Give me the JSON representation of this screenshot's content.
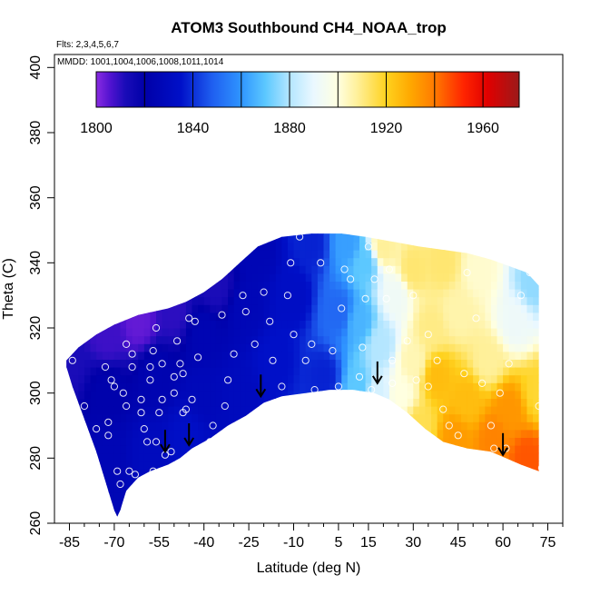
{
  "chart_data": {
    "type": "heatmap",
    "title": "ATOM3 Southbound CH4_NOAA_trop",
    "subtitle_flights": "Flts: 2,3,4,5,6,7",
    "subtitle_dates": "MMDD: 1001,1004,1006,1008,1011,1014",
    "xlabel": "Latitude (deg N)",
    "ylabel": "Theta (C)",
    "xlim": [
      -90,
      80
    ],
    "ylim": [
      260,
      404
    ],
    "x_ticks": [
      -85,
      -70,
      -55,
      -40,
      -25,
      -10,
      5,
      15,
      30,
      45,
      60,
      75
    ],
    "x_minor_ticks": [
      -80,
      -75,
      -65,
      -60,
      -50,
      -45,
      -35,
      -30,
      -20,
      -15,
      -5,
      0,
      10,
      20,
      25,
      35,
      40,
      50,
      55,
      65,
      70,
      80
    ],
    "y_ticks": [
      260,
      280,
      300,
      320,
      340,
      360,
      380,
      400
    ],
    "colorbar": {
      "min": 1800,
      "max": 1975,
      "tick_values": [
        1800,
        1840,
        1880,
        1920,
        1960
      ],
      "tick_labels": [
        "1800",
        "1840",
        "1880",
        "1920",
        "1960"
      ],
      "bin_edges": [
        1800,
        1820,
        1840,
        1860,
        1880,
        1900,
        1920,
        1940,
        1960,
        1975
      ],
      "stops": [
        {
          "value": 1800,
          "color": "#8a2be2"
        },
        {
          "value": 1806,
          "color": "#4f12cf"
        },
        {
          "value": 1812,
          "color": "#1a0cb8"
        },
        {
          "value": 1820,
          "color": "#0000a8"
        },
        {
          "value": 1835,
          "color": "#0010c8"
        },
        {
          "value": 1848,
          "color": "#1f5ff0"
        },
        {
          "value": 1860,
          "color": "#2f95ff"
        },
        {
          "value": 1870,
          "color": "#5cc8ff"
        },
        {
          "value": 1880,
          "color": "#b4e6ff"
        },
        {
          "value": 1890,
          "color": "#eaf8ff"
        },
        {
          "value": 1900,
          "color": "#ffffe0"
        },
        {
          "value": 1908,
          "color": "#fff09a"
        },
        {
          "value": 1920,
          "color": "#ffd21e"
        },
        {
          "value": 1930,
          "color": "#ffa800"
        },
        {
          "value": 1940,
          "color": "#ff7a00"
        },
        {
          "value": 1952,
          "color": "#ff2400"
        },
        {
          "value": 1962,
          "color": "#e00000"
        },
        {
          "value": 1975,
          "color": "#9b1a1a"
        }
      ]
    },
    "field_extent": {
      "top_boundary": [
        [
          -86,
          310
        ],
        [
          -82,
          314
        ],
        [
          -76,
          318
        ],
        [
          -70,
          321
        ],
        [
          -62,
          324
        ],
        [
          -52,
          326
        ],
        [
          -46,
          328
        ],
        [
          -40,
          331
        ],
        [
          -34,
          335
        ],
        [
          -28,
          340
        ],
        [
          -22,
          345
        ],
        [
          -14,
          348
        ],
        [
          -4,
          349
        ],
        [
          6,
          349
        ],
        [
          14,
          348
        ],
        [
          20,
          347
        ],
        [
          26,
          346
        ],
        [
          32,
          345
        ],
        [
          40,
          344
        ],
        [
          48,
          343
        ],
        [
          56,
          341
        ],
        [
          62,
          339
        ],
        [
          68,
          337
        ],
        [
          72,
          333
        ]
      ],
      "bottom_boundary": [
        [
          72,
          276
        ],
        [
          66,
          278
        ],
        [
          56,
          282
        ],
        [
          48,
          283
        ],
        [
          40,
          285
        ],
        [
          34,
          289
        ],
        [
          28,
          294
        ],
        [
          22,
          298
        ],
        [
          17,
          300
        ],
        [
          10,
          301
        ],
        [
          2,
          301
        ],
        [
          -6,
          300
        ],
        [
          -14,
          299
        ],
        [
          -20,
          297
        ],
        [
          -26,
          293
        ],
        [
          -32,
          290
        ],
        [
          -38,
          286
        ],
        [
          -44,
          283
        ],
        [
          -48,
          280
        ],
        [
          -52,
          278
        ],
        [
          -58,
          276
        ],
        [
          -62,
          274
        ],
        [
          -64,
          272
        ],
        [
          -66,
          270
        ],
        [
          -67,
          267
        ],
        [
          -68,
          264
        ],
        [
          -69,
          262
        ],
        [
          -70,
          264
        ],
        [
          -72,
          270
        ],
        [
          -76,
          282
        ],
        [
          -80,
          292
        ],
        [
          -84,
          302
        ],
        [
          -86,
          308
        ]
      ]
    },
    "field_samples": [
      {
        "lat": -86,
        "theta": 310,
        "value": 1812
      },
      {
        "lat": -72,
        "theta": 280,
        "value": 1826
      },
      {
        "lat": -72,
        "theta": 300,
        "value": 1822
      },
      {
        "lat": -72,
        "theta": 318,
        "value": 1808
      },
      {
        "lat": -62,
        "theta": 322,
        "value": 1804
      },
      {
        "lat": -58,
        "theta": 282,
        "value": 1830
      },
      {
        "lat": -56,
        "theta": 305,
        "value": 1824
      },
      {
        "lat": -50,
        "theta": 325,
        "value": 1810
      },
      {
        "lat": -46,
        "theta": 286,
        "value": 1834
      },
      {
        "lat": -40,
        "theta": 300,
        "value": 1828
      },
      {
        "lat": -40,
        "theta": 318,
        "value": 1825
      },
      {
        "lat": -36,
        "theta": 333,
        "value": 1812
      },
      {
        "lat": -28,
        "theta": 300,
        "value": 1830
      },
      {
        "lat": -26,
        "theta": 326,
        "value": 1827
      },
      {
        "lat": -22,
        "theta": 343,
        "value": 1826
      },
      {
        "lat": -16,
        "theta": 310,
        "value": 1835
      },
      {
        "lat": -10,
        "theta": 330,
        "value": 1833
      },
      {
        "lat": -4,
        "theta": 346,
        "value": 1838
      },
      {
        "lat": 0,
        "theta": 305,
        "value": 1838
      },
      {
        "lat": 5,
        "theta": 325,
        "value": 1850
      },
      {
        "lat": 8,
        "theta": 346,
        "value": 1862
      },
      {
        "lat": 12,
        "theta": 302,
        "value": 1870
      },
      {
        "lat": 12,
        "theta": 322,
        "value": 1866
      },
      {
        "lat": 14,
        "theta": 340,
        "value": 1870
      },
      {
        "lat": 18,
        "theta": 300,
        "value": 1886
      },
      {
        "lat": 19,
        "theta": 315,
        "value": 1880
      },
      {
        "lat": 20,
        "theta": 345,
        "value": 1908
      },
      {
        "lat": 24,
        "theta": 330,
        "value": 1893
      },
      {
        "lat": 26,
        "theta": 300,
        "value": 1900
      },
      {
        "lat": 30,
        "theta": 310,
        "value": 1905
      },
      {
        "lat": 30,
        "theta": 338,
        "value": 1912
      },
      {
        "lat": 32,
        "theta": 290,
        "value": 1915
      },
      {
        "lat": 36,
        "theta": 320,
        "value": 1910
      },
      {
        "lat": 38,
        "theta": 305,
        "value": 1925
      },
      {
        "lat": 40,
        "theta": 340,
        "value": 1912
      },
      {
        "lat": 44,
        "theta": 286,
        "value": 1933
      },
      {
        "lat": 45,
        "theta": 325,
        "value": 1906
      },
      {
        "lat": 48,
        "theta": 298,
        "value": 1925
      },
      {
        "lat": 52,
        "theta": 338,
        "value": 1902
      },
      {
        "lat": 55,
        "theta": 310,
        "value": 1908
      },
      {
        "lat": 57,
        "theta": 286,
        "value": 1938
      },
      {
        "lat": 62,
        "theta": 295,
        "value": 1934
      },
      {
        "lat": 64,
        "theta": 322,
        "value": 1892
      },
      {
        "lat": 68,
        "theta": 280,
        "value": 1945
      },
      {
        "lat": 70,
        "theta": 334,
        "value": 1876
      },
      {
        "lat": 72,
        "theta": 300,
        "value": 1918
      }
    ],
    "observations": [
      [
        -84,
        310
      ],
      [
        -80,
        296
      ],
      [
        -76,
        289
      ],
      [
        -73,
        308
      ],
      [
        -71,
        304
      ],
      [
        -69,
        276
      ],
      [
        -68,
        272
      ],
      [
        -72,
        287
      ],
      [
        -72,
        291
      ],
      [
        -70,
        302
      ],
      [
        -67,
        300
      ],
      [
        -66,
        296
      ],
      [
        -65,
        276
      ],
      [
        -63,
        275
      ],
      [
        -66,
        315
      ],
      [
        -64,
        308
      ],
      [
        -64,
        312
      ],
      [
        -61,
        298
      ],
      [
        -61,
        294
      ],
      [
        -60,
        289
      ],
      [
        -59,
        285
      ],
      [
        -58,
        308
      ],
      [
        -58,
        304
      ],
      [
        -57,
        276
      ],
      [
        -56,
        285
      ],
      [
        -57,
        313
      ],
      [
        -56,
        320
      ],
      [
        -55,
        294
      ],
      [
        -54,
        298
      ],
      [
        -54,
        309
      ],
      [
        -53,
        281
      ],
      [
        -51,
        282
      ],
      [
        -50,
        305
      ],
      [
        -50,
        300
      ],
      [
        -49,
        316
      ],
      [
        -48,
        309
      ],
      [
        -47,
        306
      ],
      [
        -47,
        294
      ],
      [
        -46,
        295
      ],
      [
        -45,
        323
      ],
      [
        -44,
        298
      ],
      [
        -43,
        322
      ],
      [
        -42,
        311
      ],
      [
        -40,
        282
      ],
      [
        -38,
        285
      ],
      [
        -37,
        290
      ],
      [
        -34,
        324
      ],
      [
        -33,
        296
      ],
      [
        -32,
        304
      ],
      [
        -30,
        312
      ],
      [
        -27,
        330
      ],
      [
        -26,
        325
      ],
      [
        -24,
        292
      ],
      [
        -23,
        315
      ],
      [
        -21,
        294
      ],
      [
        -20,
        331
      ],
      [
        -18,
        322
      ],
      [
        -17,
        310
      ],
      [
        -14,
        302
      ],
      [
        -12,
        330
      ],
      [
        -11,
        340
      ],
      [
        -10,
        318
      ],
      [
        -8,
        348
      ],
      [
        -6,
        310
      ],
      [
        -4,
        315
      ],
      [
        -3,
        301
      ],
      [
        -1,
        340
      ],
      [
        3,
        313
      ],
      [
        5,
        302
      ],
      [
        6,
        326
      ],
      [
        7,
        338
      ],
      [
        9,
        335
      ],
      [
        12,
        305
      ],
      [
        13,
        314
      ],
      [
        14,
        329
      ],
      [
        15,
        345
      ],
      [
        16,
        301
      ],
      [
        17,
        335
      ],
      [
        21,
        329
      ],
      [
        22,
        338
      ],
      [
        23,
        303
      ],
      [
        23,
        310
      ],
      [
        25,
        348
      ],
      [
        28,
        316
      ],
      [
        30,
        330
      ],
      [
        31,
        304
      ],
      [
        35,
        302
      ],
      [
        35,
        318
      ],
      [
        38,
        310
      ],
      [
        40,
        295
      ],
      [
        42,
        290
      ],
      [
        45,
        287
      ],
      [
        47,
        306
      ],
      [
        48,
        337
      ],
      [
        51,
        323
      ],
      [
        53,
        303
      ],
      [
        56,
        290
      ],
      [
        57,
        283
      ],
      [
        59,
        300
      ],
      [
        61,
        283
      ],
      [
        62,
        309
      ],
      [
        66,
        330
      ],
      [
        69,
        337
      ],
      [
        72,
        296
      ],
      [
        73,
        277
      ]
    ],
    "arrows": [
      {
        "lat": -53,
        "theta": 282
      },
      {
        "lat": -45,
        "theta": 284
      },
      {
        "lat": -21,
        "theta": 299
      },
      {
        "lat": 18,
        "theta": 303
      },
      {
        "lat": 60,
        "theta": 281
      }
    ],
    "grid": false,
    "legend_position": "top"
  }
}
